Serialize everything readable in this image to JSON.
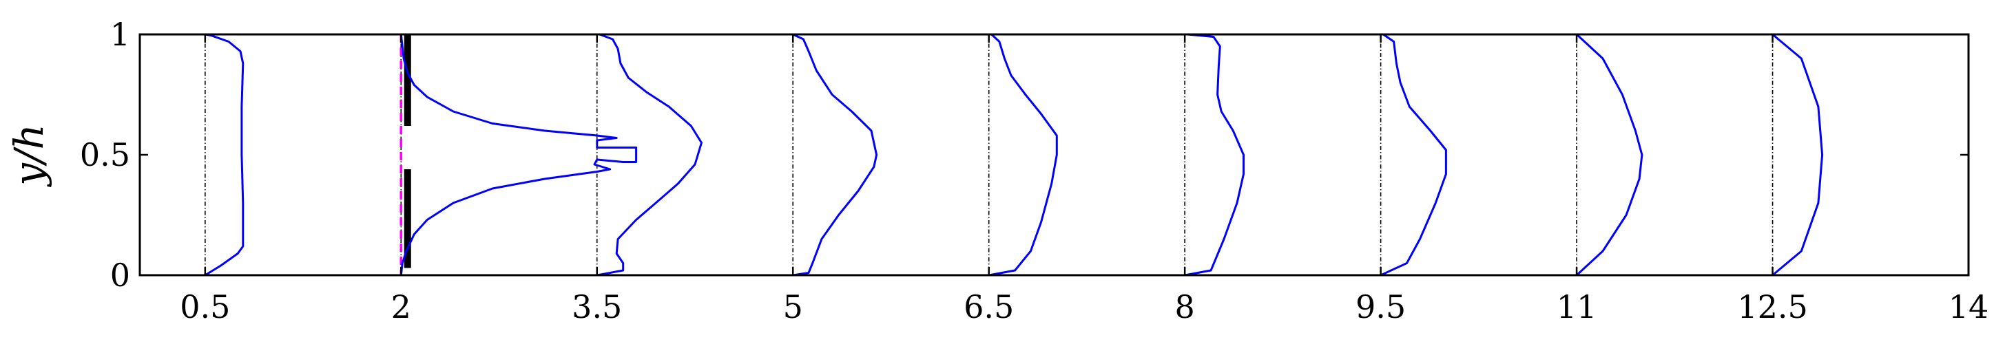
{
  "chart_data": {
    "type": "line",
    "title": "",
    "xlabel": "",
    "ylabel": "y/h",
    "xlim": [
      0,
      14
    ],
    "ylim": [
      0,
      1
    ],
    "xticks": [
      "0.5",
      "2",
      "3.5",
      "5",
      "6.5",
      "8",
      "9.5",
      "11",
      "12.5",
      "14"
    ],
    "yticks": [
      "0",
      "0.5",
      "1"
    ],
    "grid": false,
    "legend": "none",
    "colors": {
      "profile": "#0000ff",
      "reference": "#000000",
      "inlet_line": "#ff00ff",
      "obstacle": "#000000"
    },
    "reference_lines_x": [
      0.5,
      2,
      3.5,
      5,
      6.5,
      8,
      9.5,
      11,
      12.5
    ],
    "inlet_line_x": 2,
    "obstacles": [
      {
        "x": 2.05,
        "y_range": [
          0.03,
          0.44
        ]
      },
      {
        "x": 2.05,
        "y_range": [
          0.62,
          1.0
        ]
      }
    ],
    "profiles": [
      {
        "station": 0.5,
        "points": [
          [
            0.5,
            0.0
          ],
          [
            0.62,
            0.04
          ],
          [
            0.75,
            0.09
          ],
          [
            0.79,
            0.12
          ],
          [
            0.79,
            0.3
          ],
          [
            0.78,
            0.5
          ],
          [
            0.78,
            0.7
          ],
          [
            0.79,
            0.88
          ],
          [
            0.77,
            0.93
          ],
          [
            0.68,
            0.97
          ],
          [
            0.55,
            0.995
          ],
          [
            0.5,
            1.0
          ]
        ]
      },
      {
        "station": 2,
        "points": [
          [
            2.0,
            0.0
          ],
          [
            2.01,
            0.05
          ],
          [
            2.04,
            0.1
          ],
          [
            2.1,
            0.17
          ],
          [
            2.2,
            0.23
          ],
          [
            2.4,
            0.3
          ],
          [
            2.7,
            0.36
          ],
          [
            3.1,
            0.4
          ],
          [
            3.5,
            0.43
          ],
          [
            3.6,
            0.44
          ],
          [
            3.48,
            0.46
          ],
          [
            3.5,
            0.48
          ],
          [
            3.7,
            0.47
          ],
          [
            3.8,
            0.47
          ],
          [
            3.8,
            0.53
          ],
          [
            3.68,
            0.53
          ],
          [
            3.5,
            0.53
          ],
          [
            3.5,
            0.56
          ],
          [
            3.65,
            0.57
          ],
          [
            3.5,
            0.58
          ],
          [
            3.1,
            0.6
          ],
          [
            2.7,
            0.63
          ],
          [
            2.4,
            0.68
          ],
          [
            2.2,
            0.74
          ],
          [
            2.1,
            0.79
          ],
          [
            2.05,
            0.84
          ],
          [
            2.02,
            0.9
          ],
          [
            2.0,
            1.0
          ]
        ]
      },
      {
        "station": 3.5,
        "points": [
          [
            3.5,
            0.0
          ],
          [
            3.7,
            0.02
          ],
          [
            3.7,
            0.05
          ],
          [
            3.65,
            0.09
          ],
          [
            3.66,
            0.15
          ],
          [
            3.8,
            0.23
          ],
          [
            3.95,
            0.3
          ],
          [
            4.12,
            0.38
          ],
          [
            4.25,
            0.46
          ],
          [
            4.3,
            0.55
          ],
          [
            4.22,
            0.62
          ],
          [
            4.05,
            0.7
          ],
          [
            3.88,
            0.76
          ],
          [
            3.74,
            0.82
          ],
          [
            3.68,
            0.88
          ],
          [
            3.66,
            0.94
          ],
          [
            3.62,
            0.98
          ],
          [
            3.52,
            1.0
          ]
        ]
      },
      {
        "station": 5,
        "points": [
          [
            5.0,
            0.0
          ],
          [
            5.12,
            0.01
          ],
          [
            5.15,
            0.05
          ],
          [
            5.22,
            0.15
          ],
          [
            5.35,
            0.25
          ],
          [
            5.5,
            0.35
          ],
          [
            5.62,
            0.45
          ],
          [
            5.64,
            0.5
          ],
          [
            5.6,
            0.6
          ],
          [
            5.45,
            0.68
          ],
          [
            5.3,
            0.75
          ],
          [
            5.18,
            0.85
          ],
          [
            5.12,
            0.93
          ],
          [
            5.08,
            0.98
          ],
          [
            5.0,
            1.0
          ]
        ]
      },
      {
        "station": 6.5,
        "points": [
          [
            6.5,
            0.0
          ],
          [
            6.7,
            0.02
          ],
          [
            6.82,
            0.1
          ],
          [
            6.9,
            0.22
          ],
          [
            6.98,
            0.38
          ],
          [
            7.02,
            0.5
          ],
          [
            7.02,
            0.58
          ],
          [
            6.9,
            0.67
          ],
          [
            6.78,
            0.75
          ],
          [
            6.67,
            0.83
          ],
          [
            6.62,
            0.9
          ],
          [
            6.58,
            0.97
          ],
          [
            6.52,
            1.0
          ]
        ]
      },
      {
        "station": 8,
        "points": [
          [
            8.0,
            0.0
          ],
          [
            8.2,
            0.02
          ],
          [
            8.3,
            0.15
          ],
          [
            8.4,
            0.3
          ],
          [
            8.45,
            0.42
          ],
          [
            8.45,
            0.5
          ],
          [
            8.37,
            0.6
          ],
          [
            8.28,
            0.68
          ],
          [
            8.25,
            0.75
          ],
          [
            8.26,
            0.87
          ],
          [
            8.27,
            0.95
          ],
          [
            8.22,
            0.99
          ],
          [
            8.02,
            1.0
          ]
        ]
      },
      {
        "station": 9.5,
        "points": [
          [
            9.5,
            0.0
          ],
          [
            9.7,
            0.05
          ],
          [
            9.8,
            0.15
          ],
          [
            9.92,
            0.3
          ],
          [
            10.0,
            0.42
          ],
          [
            10.0,
            0.52
          ],
          [
            9.88,
            0.6
          ],
          [
            9.72,
            0.7
          ],
          [
            9.65,
            0.8
          ],
          [
            9.62,
            0.88
          ],
          [
            9.6,
            0.97
          ],
          [
            9.52,
            1.0
          ]
        ]
      },
      {
        "station": 11,
        "points": [
          [
            11.0,
            0.0
          ],
          [
            11.2,
            0.1
          ],
          [
            11.38,
            0.25
          ],
          [
            11.48,
            0.4
          ],
          [
            11.5,
            0.5
          ],
          [
            11.45,
            0.6
          ],
          [
            11.35,
            0.75
          ],
          [
            11.2,
            0.9
          ],
          [
            11.0,
            1.0
          ]
        ]
      },
      {
        "station": 12.5,
        "points": [
          [
            12.5,
            0.0
          ],
          [
            12.72,
            0.1
          ],
          [
            12.85,
            0.3
          ],
          [
            12.88,
            0.5
          ],
          [
            12.85,
            0.7
          ],
          [
            12.72,
            0.9
          ],
          [
            12.5,
            1.0
          ]
        ]
      }
    ]
  }
}
